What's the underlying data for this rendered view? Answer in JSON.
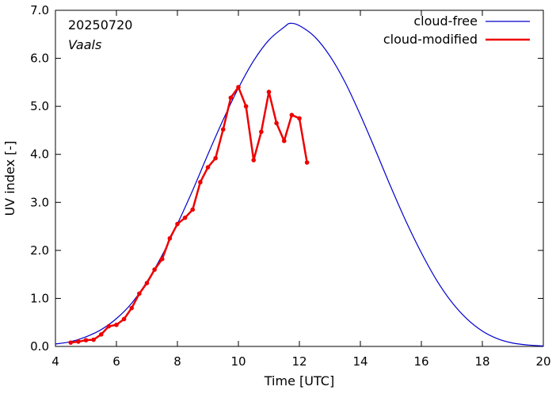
{
  "chart_data": {
    "type": "line",
    "xlabel": "Time  [UTC]",
    "ylabel": "UV index  [-]",
    "xlim": [
      4,
      20
    ],
    "ylim": [
      0,
      7
    ],
    "x_ticks": [
      4,
      6,
      8,
      10,
      12,
      14,
      16,
      18,
      20
    ],
    "x_tick_labels": [
      "4",
      "6",
      "8",
      "10",
      "12",
      "14",
      "16",
      "18",
      "20"
    ],
    "y_ticks": [
      0,
      1,
      2,
      3,
      4,
      5,
      6,
      7
    ],
    "y_tick_labels": [
      "0.0",
      "1.0",
      "2.0",
      "3.0",
      "4.0",
      "5.0",
      "6.0",
      "7.0"
    ],
    "annotations": [
      {
        "text": "20250720",
        "style": "normal"
      },
      {
        "text": "Vaals",
        "style": "italic"
      }
    ],
    "legend_position": "top-right",
    "grid": false,
    "series": [
      {
        "name": "cloud-free",
        "color": "#0000cc",
        "markers": false,
        "x": [
          4.0,
          4.5,
          5.0,
          5.5,
          6.0,
          6.5,
          7.0,
          7.5,
          8.0,
          8.5,
          9.0,
          9.5,
          10.0,
          10.5,
          11.0,
          11.5,
          11.7,
          12.0,
          12.5,
          13.0,
          13.5,
          14.0,
          14.5,
          15.0,
          15.5,
          16.0,
          16.5,
          17.0,
          17.5,
          18.0,
          18.5,
          19.0,
          19.5,
          20.0
        ],
        "y": [
          0.05,
          0.1,
          0.2,
          0.35,
          0.58,
          0.9,
          1.35,
          1.9,
          2.55,
          3.25,
          4.0,
          4.72,
          5.38,
          5.95,
          6.38,
          6.65,
          6.73,
          6.68,
          6.45,
          6.05,
          5.5,
          4.82,
          4.08,
          3.32,
          2.6,
          1.95,
          1.38,
          0.92,
          0.57,
          0.32,
          0.16,
          0.07,
          0.03,
          0.01
        ]
      },
      {
        "name": "cloud-modified",
        "color": "#ee0000",
        "markers": true,
        "x": [
          4.5,
          4.75,
          5.0,
          5.25,
          5.5,
          5.75,
          6.0,
          6.25,
          6.5,
          6.75,
          7.0,
          7.25,
          7.5,
          7.75,
          8.0,
          8.25,
          8.5,
          8.75,
          9.0,
          9.25,
          9.5,
          9.75,
          10.0,
          10.25,
          10.5,
          10.75,
          11.0,
          11.25,
          11.5,
          11.75,
          12.0,
          12.25
        ],
        "y": [
          0.08,
          0.1,
          0.13,
          0.14,
          0.25,
          0.42,
          0.45,
          0.57,
          0.8,
          1.1,
          1.32,
          1.6,
          1.82,
          2.25,
          2.55,
          2.68,
          2.85,
          3.42,
          3.73,
          3.92,
          4.52,
          5.18,
          5.4,
          5.0,
          3.88,
          4.47,
          5.3,
          4.65,
          4.28,
          4.82,
          4.75,
          3.83
        ]
      }
    ]
  }
}
